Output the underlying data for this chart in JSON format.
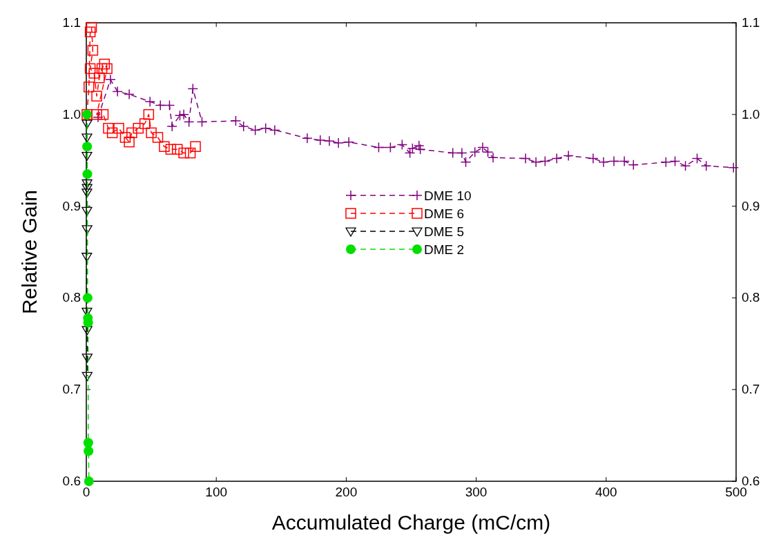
{
  "chart_data": {
    "type": "line",
    "xlabel": "Accumulated Charge (mC/cm)",
    "ylabel": "Relative Gain",
    "xlim": [
      0,
      500
    ],
    "xticks": [
      0,
      100,
      200,
      300,
      400,
      500
    ],
    "ylim": [
      0.6,
      1.1
    ],
    "yticks": [
      0.6,
      0.7,
      0.8,
      0.9,
      {
        "value": 1,
        "label": "1.0"
      },
      1.1
    ],
    "y2lim": [
      0.6,
      1.1
    ],
    "y2ticks": [
      0.6,
      0.7,
      0.8,
      0.9,
      {
        "value": 1,
        "label": "1.0"
      },
      1.1
    ],
    "legend": "center",
    "grid": false,
    "series": [
      {
        "name": "DME 10",
        "color": "#800080",
        "marker": "cross",
        "line_style": "dashed",
        "x": [
          9,
          18.6,
          24,
          33,
          49,
          57,
          64,
          66,
          72,
          75,
          79,
          82,
          89,
          115,
          121,
          130,
          138,
          145,
          170,
          180,
          187,
          194,
          202,
          225,
          234,
          243,
          249,
          251,
          256,
          257,
          282,
          289,
          292,
          299,
          305,
          309,
          313,
          338,
          346,
          353,
          362,
          371,
          390,
          398,
          406,
          414,
          421,
          446,
          453,
          461,
          470,
          477,
          498
        ],
        "values": [
          0.997,
          1.038,
          1.025,
          1.022,
          1.014,
          1.01,
          1.01,
          0.987,
          0.999,
          1.0,
          0.992,
          1.028,
          0.992,
          0.993,
          0.987,
          0.983,
          0.985,
          0.983,
          0.974,
          0.972,
          0.971,
          0.969,
          0.97,
          0.964,
          0.964,
          0.967,
          0.958,
          0.963,
          0.966,
          0.962,
          0.958,
          0.958,
          0.948,
          0.959,
          0.964,
          0.959,
          0.953,
          0.952,
          0.948,
          0.949,
          0.952,
          0.955,
          0.952,
          0.948,
          0.949,
          0.949,
          0.945,
          0.948,
          0.949,
          0.944,
          0.952,
          0.944,
          0.942
        ]
      },
      {
        "name": "DME 6",
        "color": "#ff0000",
        "marker": "square",
        "line_style": "dashed",
        "x": [
          0.5,
          2,
          3,
          4,
          5,
          3,
          6,
          8,
          10,
          12,
          14,
          16,
          10,
          8,
          13,
          17,
          20,
          25,
          30,
          33,
          35,
          40,
          45,
          48,
          50,
          55,
          60,
          65,
          70,
          75,
          80,
          84
        ],
        "values": [
          1.0,
          1.03,
          1.09,
          1.095,
          1.07,
          1.05,
          1.045,
          1.02,
          1.04,
          1.05,
          1.055,
          1.05,
          null,
          1.0,
          1.0,
          0.985,
          0.98,
          0.985,
          0.975,
          0.97,
          0.98,
          0.985,
          0.99,
          1.0,
          0.98,
          0.975,
          0.965,
          0.962,
          0.962,
          0.958,
          0.958,
          0.965
        ]
      },
      {
        "name": "DME 5",
        "color": "#000000",
        "marker": "triangle",
        "line_style": "dashed",
        "x": [
          0.5,
          0.5,
          0.5,
          0.6,
          0.6,
          0.5,
          0.5,
          0.6,
          0.4,
          0.5,
          0.6,
          0.7,
          0.7
        ],
        "values": [
          0.99,
          0.975,
          0.955,
          0.925,
          0.92,
          0.915,
          0.895,
          0.875,
          0.845,
          0.785,
          0.765,
          0.735,
          0.715
        ]
      },
      {
        "name": "DME 2",
        "color": "#00e000",
        "marker": "circle",
        "line_style": "dashed",
        "x": [
          0.5,
          0.6,
          0.8,
          1,
          1.2,
          1.4,
          1.5,
          1.7,
          2
        ],
        "values": [
          1.0,
          0.965,
          0.935,
          0.8,
          0.778,
          0.773,
          0.642,
          0.633,
          0.6
        ]
      }
    ]
  }
}
